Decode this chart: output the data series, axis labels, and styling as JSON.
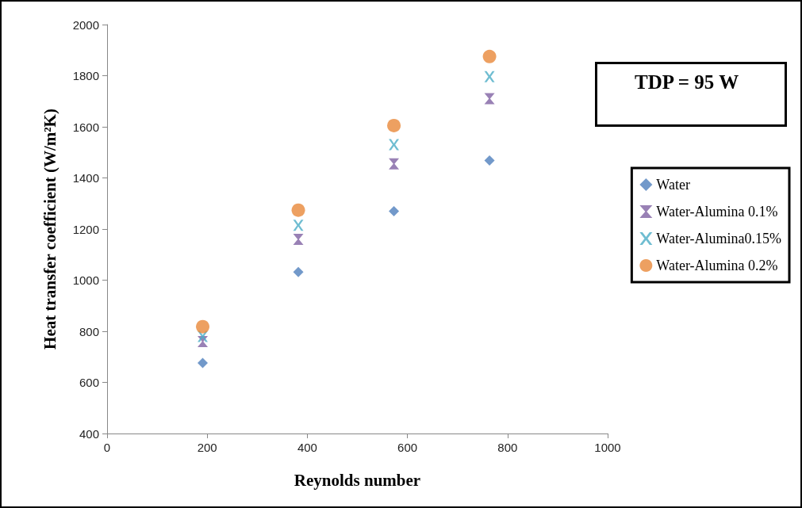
{
  "chart_data": {
    "type": "scatter",
    "xlabel": "Reynolds number",
    "ylabel": "Heat transfer coefficient (W/m²K)",
    "xlim": [
      0,
      1000
    ],
    "xticks": [
      0,
      200,
      400,
      600,
      800,
      1000
    ],
    "ylim": [
      400,
      2000
    ],
    "yticks": [
      400,
      600,
      800,
      1000,
      1200,
      1400,
      1600,
      1800,
      2000
    ],
    "grid": false,
    "legend": "right",
    "annotations": [
      "TDP = 95 W"
    ],
    "series": [
      {
        "name": "Water",
        "color": "#4f7fbd",
        "marker": "diamond",
        "x": [
          191,
          382,
          573,
          764
        ],
        "values": [
          676,
          1032,
          1270,
          1468
        ]
      },
      {
        "name": "Water-Alumina 0.1%",
        "color": "#7f62a3",
        "marker": "triangle",
        "x": [
          191,
          382,
          573,
          764
        ],
        "values": [
          760,
          1160,
          1455,
          1710
        ]
      },
      {
        "name": "Water-Alumina0.15%",
        "color": "#4bacc6",
        "marker": "cross",
        "x": [
          191,
          382,
          573,
          764
        ],
        "values": [
          780,
          1215,
          1530,
          1796
        ]
      },
      {
        "name": "Water-Alumina 0.2%",
        "color": "#e9883a",
        "marker": "circle",
        "x": [
          191,
          382,
          573,
          764
        ],
        "values": [
          818,
          1274,
          1605,
          1875
        ]
      }
    ]
  }
}
